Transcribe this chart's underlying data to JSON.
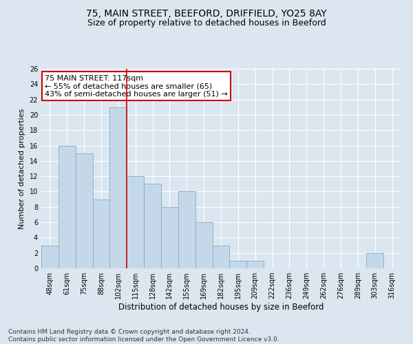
{
  "title1": "75, MAIN STREET, BEEFORD, DRIFFIELD, YO25 8AY",
  "title2": "Size of property relative to detached houses in Beeford",
  "xlabel": "Distribution of detached houses by size in Beeford",
  "ylabel": "Number of detached properties",
  "categories": [
    "48sqm",
    "61sqm",
    "75sqm",
    "88sqm",
    "102sqm",
    "115sqm",
    "128sqm",
    "142sqm",
    "155sqm",
    "169sqm",
    "182sqm",
    "195sqm",
    "209sqm",
    "222sqm",
    "236sqm",
    "249sqm",
    "262sqm",
    "276sqm",
    "289sqm",
    "303sqm",
    "316sqm"
  ],
  "values": [
    3,
    16,
    15,
    9,
    21,
    12,
    11,
    8,
    10,
    6,
    3,
    1,
    1,
    0,
    0,
    0,
    0,
    0,
    0,
    2,
    0
  ],
  "bar_color": "#c5d8ea",
  "bar_edge_color": "#7aaec8",
  "vline_index": 4.5,
  "vline_color": "#cc0000",
  "ylim": [
    0,
    26
  ],
  "yticks": [
    0,
    2,
    4,
    6,
    8,
    10,
    12,
    14,
    16,
    18,
    20,
    22,
    24,
    26
  ],
  "annotation_text": "75 MAIN STREET: 117sqm\n← 55% of detached houses are smaller (65)\n43% of semi-detached houses are larger (51) →",
  "annotation_box_color": "#ffffff",
  "annotation_box_edge": "#cc0000",
  "footnote": "Contains HM Land Registry data © Crown copyright and database right 2024.\nContains public sector information licensed under the Open Government Licence v3.0.",
  "background_color": "#dce6f0",
  "plot_background_color": "#dce6f0",
  "grid_color": "#ffffff",
  "title1_fontsize": 10,
  "title2_fontsize": 9,
  "xlabel_fontsize": 8.5,
  "ylabel_fontsize": 8,
  "tick_fontsize": 7,
  "annotation_fontsize": 8,
  "footnote_fontsize": 6.5
}
